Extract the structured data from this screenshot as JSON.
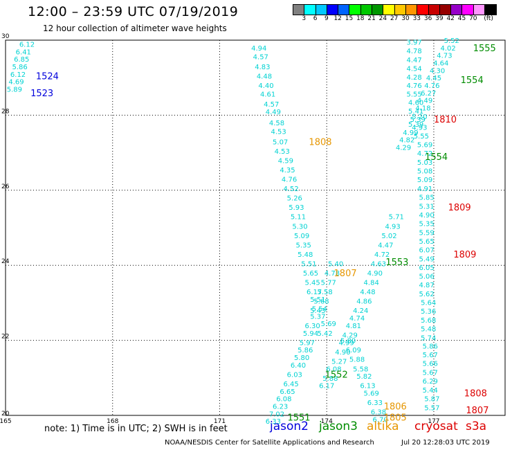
{
  "chart_data": {
    "type": "scatter",
    "title": "12:00 – 23:59 UTC 07/19/2019",
    "subtitle": "12 hour collection of altimeter wave heights",
    "xlim": [
      165,
      179
    ],
    "ylim": [
      20,
      30
    ],
    "x_ticks": [
      165,
      168,
      171,
      174,
      177
    ],
    "y_ticks": [
      20,
      22,
      24,
      26,
      28,
      30
    ],
    "grid": true,
    "colorbar": {
      "colors": [
        "#808080",
        "#00ffff",
        "#00c8ff",
        "#0000ff",
        "#0064ff",
        "#00ff00",
        "#00c800",
        "#009600",
        "#ffff00",
        "#ffc800",
        "#ff9600",
        "#ff0000",
        "#c80000",
        "#960000",
        "#9600c8",
        "#ff00ff",
        "#ff96ff",
        "#000000"
      ],
      "labels": [
        "3",
        "6",
        "9",
        "12",
        "15",
        "18",
        "21",
        "24",
        "27",
        "30",
        "33",
        "36",
        "39",
        "42",
        "45",
        "70",
        "(ft)"
      ]
    },
    "swh_color": "#00d2d2",
    "swh_points": [
      {
        "x": 165.6,
        "y": 29.9,
        "v": "6.12"
      },
      {
        "x": 165.5,
        "y": 29.7,
        "v": "6.41"
      },
      {
        "x": 165.45,
        "y": 29.5,
        "v": "6.85"
      },
      {
        "x": 165.4,
        "y": 29.3,
        "v": "5.86"
      },
      {
        "x": 165.35,
        "y": 29.1,
        "v": "6.12"
      },
      {
        "x": 165.3,
        "y": 28.9,
        "v": "4.69"
      },
      {
        "x": 165.25,
        "y": 28.7,
        "v": "5.89"
      },
      {
        "x": 172.1,
        "y": 29.8,
        "v": "4.94"
      },
      {
        "x": 172.15,
        "y": 29.57,
        "v": "4.57"
      },
      {
        "x": 172.2,
        "y": 29.3,
        "v": "4.83"
      },
      {
        "x": 172.25,
        "y": 29.05,
        "v": "4.48"
      },
      {
        "x": 172.3,
        "y": 28.8,
        "v": "4.40"
      },
      {
        "x": 172.35,
        "y": 28.57,
        "v": "4.61"
      },
      {
        "x": 172.45,
        "y": 28.3,
        "v": "4.57"
      },
      {
        "x": 172.5,
        "y": 28.1,
        "v": "4.49"
      },
      {
        "x": 172.6,
        "y": 27.8,
        "v": "4.58"
      },
      {
        "x": 172.65,
        "y": 27.57,
        "v": "4.53"
      },
      {
        "x": 172.7,
        "y": 27.3,
        "v": "5.07"
      },
      {
        "x": 172.75,
        "y": 27.05,
        "v": "4.53"
      },
      {
        "x": 172.85,
        "y": 26.8,
        "v": "4.59"
      },
      {
        "x": 172.9,
        "y": 26.55,
        "v": "4.35"
      },
      {
        "x": 172.95,
        "y": 26.3,
        "v": "4.76"
      },
      {
        "x": 173.0,
        "y": 26.05,
        "v": "4.52"
      },
      {
        "x": 173.1,
        "y": 25.8,
        "v": "5.26"
      },
      {
        "x": 173.15,
        "y": 25.55,
        "v": "5.93"
      },
      {
        "x": 173.2,
        "y": 25.3,
        "v": "5.11"
      },
      {
        "x": 173.25,
        "y": 25.05,
        "v": "5.30"
      },
      {
        "x": 173.3,
        "y": 24.8,
        "v": "5.09"
      },
      {
        "x": 173.35,
        "y": 24.55,
        "v": "5.35"
      },
      {
        "x": 173.4,
        "y": 24.3,
        "v": "5.48"
      },
      {
        "x": 173.5,
        "y": 24.05,
        "v": "5.51"
      },
      {
        "x": 173.55,
        "y": 23.8,
        "v": "5.65"
      },
      {
        "x": 173.6,
        "y": 23.55,
        "v": "5.45"
      },
      {
        "x": 173.65,
        "y": 23.3,
        "v": "6.17"
      },
      {
        "x": 173.75,
        "y": 23.1,
        "v": "5.51"
      },
      {
        "x": 173.8,
        "y": 22.85,
        "v": "5.54"
      },
      {
        "x": 173.75,
        "y": 22.65,
        "v": "5.37"
      },
      {
        "x": 173.6,
        "y": 22.4,
        "v": "6.30"
      },
      {
        "x": 173.55,
        "y": 22.2,
        "v": "5.94"
      },
      {
        "x": 173.45,
        "y": 21.95,
        "v": "5.97"
      },
      {
        "x": 173.4,
        "y": 21.75,
        "v": "5.86"
      },
      {
        "x": 173.3,
        "y": 21.55,
        "v": "5.80"
      },
      {
        "x": 173.2,
        "y": 21.35,
        "v": "6.40"
      },
      {
        "x": 173.1,
        "y": 21.1,
        "v": "6.03"
      },
      {
        "x": 173.0,
        "y": 20.85,
        "v": "6.45"
      },
      {
        "x": 172.9,
        "y": 20.65,
        "v": "6.65"
      },
      {
        "x": 172.8,
        "y": 20.45,
        "v": "6.08"
      },
      {
        "x": 172.7,
        "y": 20.25,
        "v": "6.23"
      },
      {
        "x": 172.6,
        "y": 20.05,
        "v": "7.02"
      },
      {
        "x": 172.5,
        "y": 19.85,
        "v": "6.33"
      },
      {
        "x": 175.95,
        "y": 25.3,
        "v": "5.71"
      },
      {
        "x": 175.85,
        "y": 25.05,
        "v": "4.93"
      },
      {
        "x": 175.75,
        "y": 24.8,
        "v": "5.02"
      },
      {
        "x": 175.65,
        "y": 24.55,
        "v": "4.47"
      },
      {
        "x": 175.55,
        "y": 24.3,
        "v": "4.72"
      },
      {
        "x": 175.45,
        "y": 24.05,
        "v": "4.63"
      },
      {
        "x": 175.35,
        "y": 23.8,
        "v": "4.90"
      },
      {
        "x": 175.25,
        "y": 23.55,
        "v": "4.84"
      },
      {
        "x": 175.15,
        "y": 23.3,
        "v": "4.48"
      },
      {
        "x": 175.05,
        "y": 23.05,
        "v": "4.86"
      },
      {
        "x": 174.95,
        "y": 22.8,
        "v": "4.24"
      },
      {
        "x": 174.85,
        "y": 22.6,
        "v": "4.74"
      },
      {
        "x": 174.75,
        "y": 22.4,
        "v": "4.81"
      },
      {
        "x": 174.65,
        "y": 22.15,
        "v": "4.29"
      },
      {
        "x": 174.55,
        "y": 21.95,
        "v": "4.99"
      },
      {
        "x": 174.45,
        "y": 21.7,
        "v": "4.90"
      },
      {
        "x": 174.35,
        "y": 21.45,
        "v": "5.27"
      },
      {
        "x": 174.2,
        "y": 21.25,
        "v": "6.08"
      },
      {
        "x": 174.1,
        "y": 21.0,
        "v": "5.88"
      },
      {
        "x": 174.0,
        "y": 20.8,
        "v": "6.17"
      },
      {
        "x": 174.25,
        "y": 24.05,
        "v": "5.40"
      },
      {
        "x": 174.15,
        "y": 23.8,
        "v": "4.78"
      },
      {
        "x": 174.05,
        "y": 23.55,
        "v": "5.77"
      },
      {
        "x": 173.95,
        "y": 23.3,
        "v": "5.58"
      },
      {
        "x": 173.85,
        "y": 23.05,
        "v": "5.68"
      },
      {
        "x": 173.75,
        "y": 22.8,
        "v": "5.43"
      },
      {
        "x": 174.05,
        "y": 22.45,
        "v": "5.69"
      },
      {
        "x": 173.95,
        "y": 22.2,
        "v": "5.42"
      },
      {
        "x": 174.6,
        "y": 22.0,
        "v": "5.80"
      },
      {
        "x": 174.75,
        "y": 21.75,
        "v": "6.09"
      },
      {
        "x": 174.85,
        "y": 21.5,
        "v": "5.88"
      },
      {
        "x": 174.95,
        "y": 21.25,
        "v": "5.58"
      },
      {
        "x": 175.05,
        "y": 21.05,
        "v": "5.82"
      },
      {
        "x": 175.15,
        "y": 20.8,
        "v": "6.13"
      },
      {
        "x": 175.25,
        "y": 20.6,
        "v": "5.69"
      },
      {
        "x": 175.35,
        "y": 20.35,
        "v": "6.33"
      },
      {
        "x": 175.45,
        "y": 20.1,
        "v": "6.38"
      },
      {
        "x": 175.5,
        "y": 19.9,
        "v": "6.70"
      },
      {
        "x": 176.45,
        "y": 29.95,
        "v": "3.97"
      },
      {
        "x": 176.45,
        "y": 29.72,
        "v": "4.78"
      },
      {
        "x": 176.45,
        "y": 29.48,
        "v": "4.47"
      },
      {
        "x": 176.45,
        "y": 29.25,
        "v": "4.54"
      },
      {
        "x": 176.45,
        "y": 29.02,
        "v": "4.28"
      },
      {
        "x": 176.45,
        "y": 28.8,
        "v": "4.76"
      },
      {
        "x": 176.45,
        "y": 28.57,
        "v": "5.55"
      },
      {
        "x": 176.5,
        "y": 28.35,
        "v": "4.60"
      },
      {
        "x": 176.5,
        "y": 28.12,
        "v": "5.41"
      },
      {
        "x": 176.55,
        "y": 27.9,
        "v": "5.39"
      },
      {
        "x": 176.6,
        "y": 27.68,
        "v": "4.93"
      },
      {
        "x": 176.65,
        "y": 27.45,
        "v": "5.55"
      },
      {
        "x": 176.75,
        "y": 27.22,
        "v": "5.69"
      },
      {
        "x": 176.75,
        "y": 26.99,
        "v": "4.72"
      },
      {
        "x": 176.75,
        "y": 26.75,
        "v": "5.03"
      },
      {
        "x": 176.75,
        "y": 26.52,
        "v": "5.08"
      },
      {
        "x": 176.75,
        "y": 26.29,
        "v": "5.09"
      },
      {
        "x": 176.75,
        "y": 26.05,
        "v": "4.91"
      },
      {
        "x": 176.8,
        "y": 25.82,
        "v": "5.85"
      },
      {
        "x": 176.8,
        "y": 25.58,
        "v": "5.31"
      },
      {
        "x": 176.8,
        "y": 25.35,
        "v": "4.90"
      },
      {
        "x": 176.8,
        "y": 25.12,
        "v": "5.35"
      },
      {
        "x": 176.8,
        "y": 24.88,
        "v": "5.59"
      },
      {
        "x": 176.8,
        "y": 24.65,
        "v": "5.65"
      },
      {
        "x": 176.8,
        "y": 24.42,
        "v": "6.07"
      },
      {
        "x": 176.8,
        "y": 24.18,
        "v": "5.49"
      },
      {
        "x": 176.8,
        "y": 23.95,
        "v": "6.05"
      },
      {
        "x": 176.8,
        "y": 23.72,
        "v": "5.06"
      },
      {
        "x": 176.8,
        "y": 23.49,
        "v": "4.87"
      },
      {
        "x": 176.8,
        "y": 23.25,
        "v": "5.62"
      },
      {
        "x": 176.85,
        "y": 23.02,
        "v": "5.64"
      },
      {
        "x": 176.85,
        "y": 22.79,
        "v": "5.36"
      },
      {
        "x": 176.85,
        "y": 22.55,
        "v": "5.68"
      },
      {
        "x": 176.85,
        "y": 22.32,
        "v": "5.48"
      },
      {
        "x": 176.85,
        "y": 22.08,
        "v": "5.74"
      },
      {
        "x": 176.9,
        "y": 21.85,
        "v": "5.86"
      },
      {
        "x": 176.9,
        "y": 21.62,
        "v": "5.67"
      },
      {
        "x": 176.9,
        "y": 21.39,
        "v": "5.66"
      },
      {
        "x": 176.9,
        "y": 21.15,
        "v": "5.67"
      },
      {
        "x": 176.9,
        "y": 20.92,
        "v": "6.29"
      },
      {
        "x": 176.9,
        "y": 20.68,
        "v": "5.44"
      },
      {
        "x": 176.95,
        "y": 20.45,
        "v": "5.87"
      },
      {
        "x": 176.95,
        "y": 20.21,
        "v": "5.57"
      },
      {
        "x": 177.5,
        "y": 30.0,
        "v": "5.52"
      },
      {
        "x": 177.4,
        "y": 29.8,
        "v": "4.02"
      },
      {
        "x": 177.3,
        "y": 29.6,
        "v": "4.73"
      },
      {
        "x": 177.2,
        "y": 29.4,
        "v": "4.64"
      },
      {
        "x": 177.1,
        "y": 29.2,
        "v": "4.30"
      },
      {
        "x": 177.0,
        "y": 29.0,
        "v": "4.45"
      },
      {
        "x": 176.95,
        "y": 28.8,
        "v": "4.76"
      },
      {
        "x": 176.85,
        "y": 28.6,
        "v": "6.27"
      },
      {
        "x": 176.75,
        "y": 28.4,
        "v": "4.49"
      },
      {
        "x": 176.7,
        "y": 28.2,
        "v": "4.18"
      },
      {
        "x": 176.6,
        "y": 27.97,
        "v": "5.20"
      },
      {
        "x": 176.5,
        "y": 27.77,
        "v": "5.39"
      },
      {
        "x": 176.35,
        "y": 27.55,
        "v": "4.99"
      },
      {
        "x": 176.25,
        "y": 27.35,
        "v": "4.82"
      },
      {
        "x": 176.15,
        "y": 27.15,
        "v": "4.29"
      }
    ],
    "annotations": [
      {
        "x": 165.85,
        "y": 29.05,
        "text": "1524",
        "color": "#0000dc",
        "mission": "jason2"
      },
      {
        "x": 165.7,
        "y": 28.6,
        "text": "1523",
        "color": "#0000dc",
        "mission": "jason2"
      },
      {
        "x": 173.5,
        "y": 27.3,
        "text": "1808",
        "color": "#e69600",
        "mission": "altika"
      },
      {
        "x": 174.2,
        "y": 23.8,
        "text": "1807",
        "color": "#e69600",
        "mission": "altika"
      },
      {
        "x": 175.6,
        "y": 20.25,
        "text": "1806",
        "color": "#e69600",
        "mission": "altika"
      },
      {
        "x": 175.6,
        "y": 19.95,
        "text": "1805",
        "color": "#e69600",
        "mission": "altika"
      },
      {
        "x": 178.1,
        "y": 29.8,
        "text": "1555",
        "color": "#008c00",
        "mission": "jason3"
      },
      {
        "x": 177.75,
        "y": 28.95,
        "text": "1554",
        "color": "#008c00",
        "mission": "jason3"
      },
      {
        "x": 176.75,
        "y": 26.9,
        "text": "1554",
        "color": "#008c00",
        "mission": "jason3"
      },
      {
        "x": 175.65,
        "y": 24.1,
        "text": "1553",
        "color": "#008c00",
        "mission": "jason3"
      },
      {
        "x": 173.95,
        "y": 21.1,
        "text": "1552",
        "color": "#008c00",
        "mission": "jason3"
      },
      {
        "x": 172.9,
        "y": 19.95,
        "text": "1551",
        "color": "#008c00",
        "mission": "jason3"
      },
      {
        "x": 177.0,
        "y": 27.9,
        "text": "1810",
        "color": "#dc0000",
        "mission": "s3a"
      },
      {
        "x": 177.4,
        "y": 25.55,
        "text": "1809",
        "color": "#dc0000",
        "mission": "s3a"
      },
      {
        "x": 177.55,
        "y": 24.3,
        "text": "1809",
        "color": "#dc0000",
        "mission": "s3a"
      },
      {
        "x": 177.85,
        "y": 20.6,
        "text": "1808",
        "color": "#dc0000",
        "mission": "s3a"
      },
      {
        "x": 177.9,
        "y": 20.15,
        "text": "1807",
        "color": "#dc0000",
        "mission": "s3a"
      }
    ]
  },
  "note": "note: 1) Time is in UTC; 2) SWH is in feet",
  "legend": [
    {
      "label": "jason2",
      "color": "#0000dc"
    },
    {
      "label": "jason3",
      "color": "#008c00"
    },
    {
      "label": "altika",
      "color": "#e69600"
    },
    {
      "label": "cryosat",
      "color": "#dc0000"
    },
    {
      "label": "s3a",
      "color": "#dc0000"
    }
  ],
  "footer": {
    "credit": "NOAA/NESDIS Center for Satellite Applications and Research",
    "timestamp": "Jul 20 12:28:03 UTC 2019"
  }
}
